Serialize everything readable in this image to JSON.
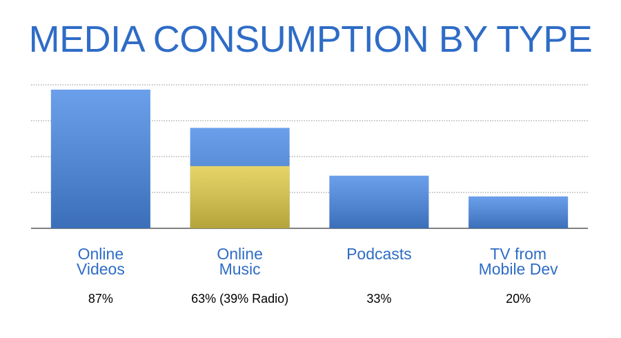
{
  "chart_data": {
    "type": "bar",
    "title": "MEDIA CONSUMPTION BY TYPE",
    "categories": [
      "Online\nVideos",
      "Online\nMusic",
      "Podcasts",
      "TV from\nMobile Dev"
    ],
    "series": [
      {
        "color": "#4a8ae6",
        "values": [
          87,
          63,
          33,
          20
        ],
        "value_labels": [
          "87%",
          "63% (39% Radio)",
          "33%",
          "20%"
        ]
      },
      {
        "color": "#e0cc48",
        "values": [
          null,
          39,
          null,
          null
        ]
      }
    ],
    "ylim": [
      0,
      90
    ],
    "yticks": [
      0,
      22.5,
      45,
      67.5,
      90
    ],
    "grid": true
  }
}
